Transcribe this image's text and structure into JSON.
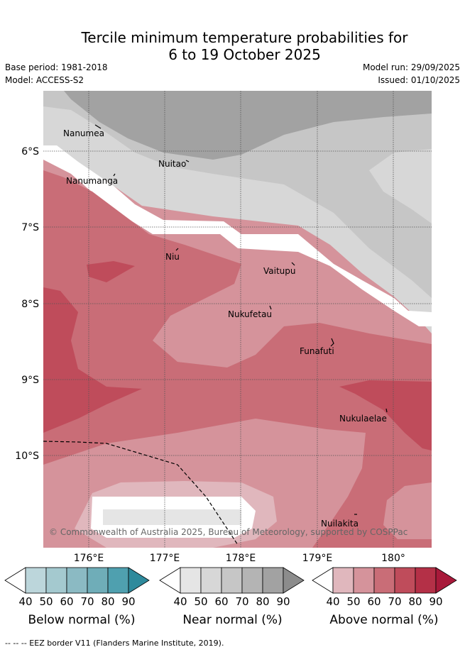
{
  "header": {
    "title_line1": "Tercile minimum temperature probabilities for",
    "title_line2": "6 to 19 October 2025",
    "base_period": "Base period: 1981-2018",
    "model": "Model: ACCESS-S2",
    "model_run": "Model run: 29/09/2025",
    "issued": "Issued: 01/10/2025"
  },
  "map": {
    "lon_labels": [
      "176°E",
      "177°E",
      "178°E",
      "179°E",
      "180°"
    ],
    "lat_labels": [
      "6°S",
      "7°S",
      "8°S",
      "9°S",
      "10°S"
    ],
    "places": [
      "Nanumea",
      "Nuitao",
      "Nanumanga",
      "Niu",
      "Vaitupu",
      "Nukufetau",
      "Funafuti",
      "Nukulaelae",
      "Nuilakita"
    ],
    "credit": "© Commonwealth of Australia 2025, Bureau of Meteorology, supported by COSPPac"
  },
  "legend": {
    "ticks": [
      "40",
      "50",
      "60",
      "70",
      "80",
      "90"
    ],
    "below_label": "Below normal (%)",
    "near_label": "Near normal (%)",
    "above_label": "Above normal (%)",
    "below_colors": [
      "#bcd6db",
      "#a4c9cf",
      "#8bbac3",
      "#6fadb8",
      "#4fa0af",
      "#2e8a9c"
    ],
    "near_colors": [
      "#e5e5e5",
      "#d7d7d7",
      "#c6c6c6",
      "#b4b4b4",
      "#a2a2a2",
      "#8c8c8c"
    ],
    "above_colors": [
      "#e0b7bd",
      "#d5939b",
      "#c96d77",
      "#bf4c5b",
      "#b43047",
      "#a8193a"
    ]
  },
  "footer": {
    "eez_note": "-- -- -- EEZ border V11 (Flanders Marine Institute, 2019)."
  }
}
